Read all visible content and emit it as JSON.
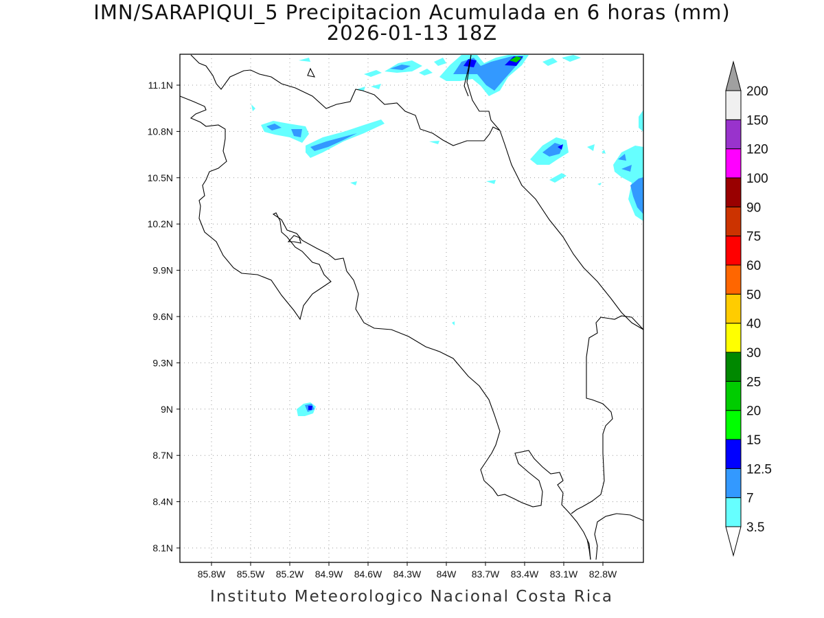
{
  "title": {
    "line1": "IMN/SARAPIQUI_5 Precipitacion Acumulada en 6 horas (mm)",
    "line2": "2026-01-13 18Z"
  },
  "footer": "Instituto Meteorologico Nacional Costa Rica",
  "map": {
    "lon_range": [
      -85.95,
      -82.65
    ],
    "lat_range": [
      8.0,
      11.3
    ],
    "x_ticks": [
      "85.8W",
      "85.5W",
      "85.2W",
      "84.9W",
      "84.6W",
      "84.3W",
      "84W",
      "83.7W",
      "83.4W",
      "83.1W",
      "82.8W"
    ],
    "y_ticks": [
      "11.1N",
      "10.8N",
      "10.5N",
      "10.2N",
      "9.9N",
      "9.6N",
      "9.3N",
      "9N",
      "8.7N",
      "8.4N",
      "8.1N"
    ],
    "grid": "dotted",
    "coastline_color": "#000000"
  },
  "colorbar": {
    "levels": [
      "3.5",
      "7",
      "12.5",
      "15",
      "20",
      "25",
      "30",
      "40",
      "50",
      "60",
      "75",
      "90",
      "100",
      "120",
      "150",
      "200"
    ],
    "colors": [
      "#66ffff",
      "#3399ff",
      "#0000ff",
      "#00ff00",
      "#00cc00",
      "#008800",
      "#ffff00",
      "#ffcc00",
      "#ff6600",
      "#ff0000",
      "#cc3300",
      "#990000",
      "#ff00ff",
      "#9933cc",
      "#f0f0f0",
      "#a0a0a0"
    ]
  }
}
